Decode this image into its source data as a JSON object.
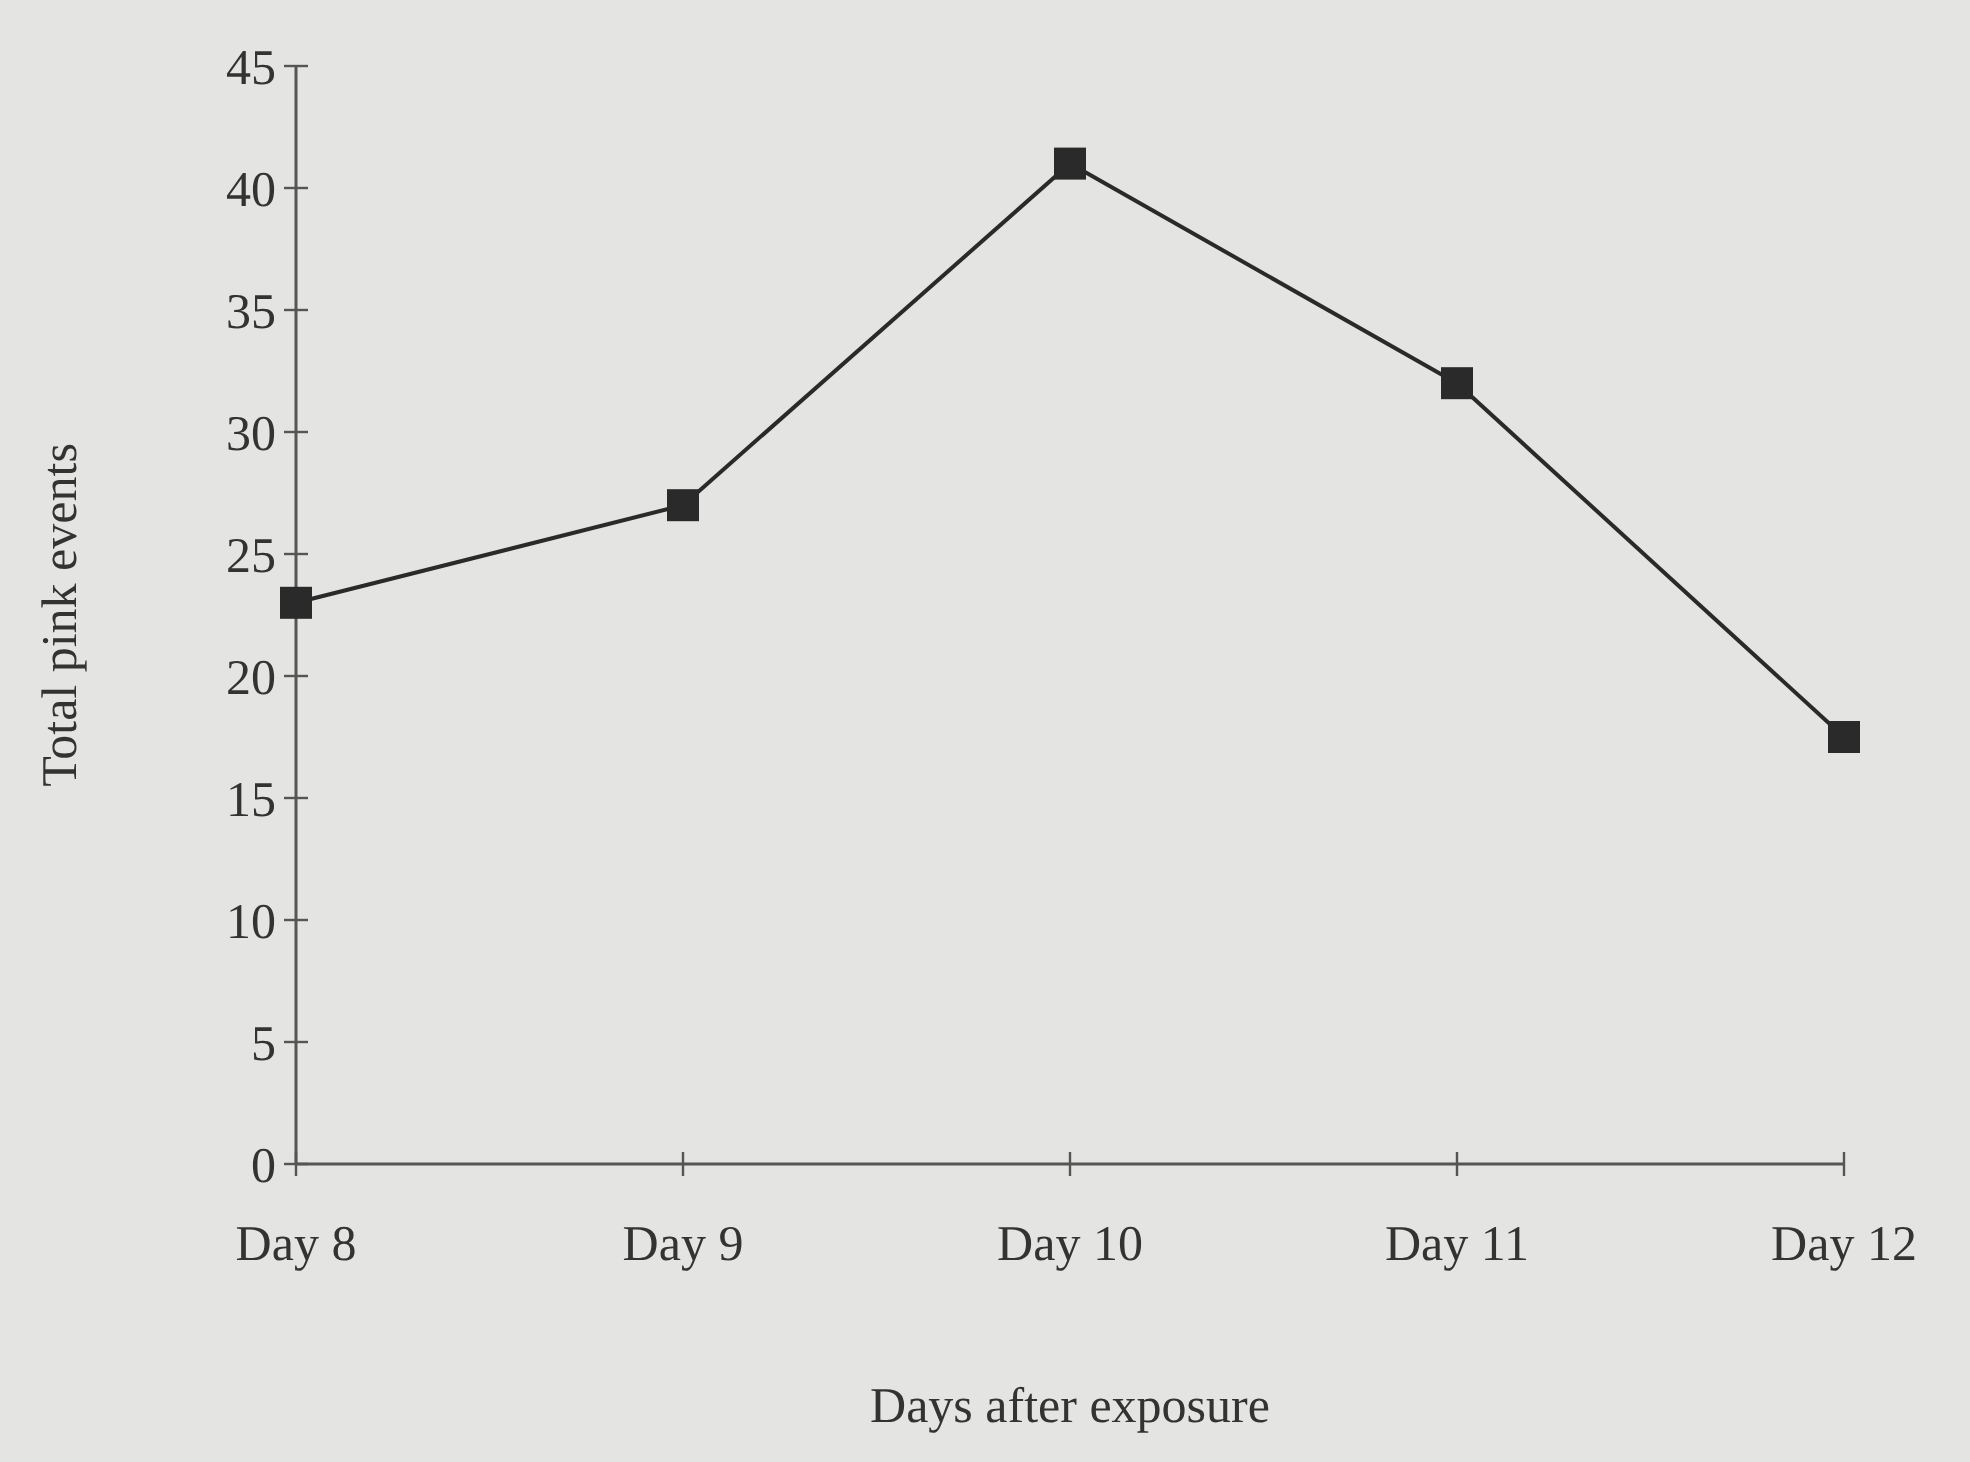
{
  "chart_data": {
    "type": "line",
    "xlabel": "Days after exposure",
    "ylabel": "Total pink events",
    "categories": [
      "Day 8",
      "Day 9",
      "Day 10",
      "Day 11",
      "Day 12"
    ],
    "series": [
      {
        "color": "#2a2a2a",
        "values": [
          23,
          27,
          41,
          32,
          17.5
        ]
      }
    ],
    "ylim": [
      0,
      45
    ],
    "yticks": [
      0,
      5,
      10,
      15,
      20,
      25,
      30,
      35,
      40,
      45
    ],
    "marker": "square",
    "line_style": "solid"
  }
}
